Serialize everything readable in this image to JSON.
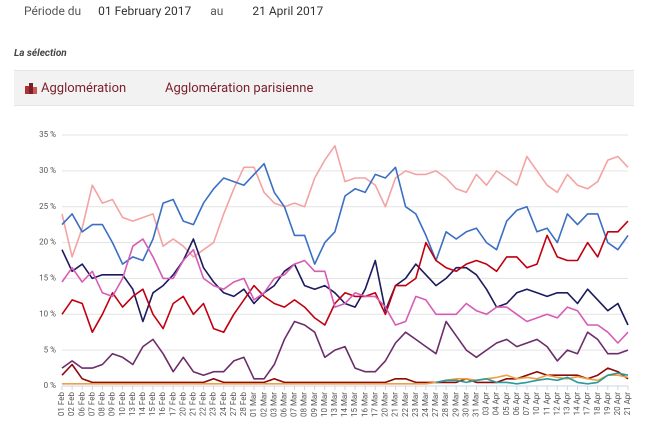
{
  "header": {
    "period_label": "Période du",
    "start_date": "01 February 2017",
    "between": "au",
    "end_date": "21 April 2017"
  },
  "selection_title": "La sélection",
  "tabs": [
    "Agglomération",
    "Agglomération parisienne"
  ],
  "chart_data": {
    "type": "line",
    "categories": [
      "01 Feb",
      "02 Feb",
      "06 Feb",
      "07 Feb",
      "08 Feb",
      "09 Feb",
      "10 Feb",
      "13 Feb",
      "14 Feb",
      "15 Feb",
      "16 Feb",
      "17 Feb",
      "20 Feb",
      "21 Feb",
      "22 Feb",
      "23 Feb",
      "24 Feb",
      "27 Feb",
      "28 Feb",
      "01 Mar",
      "02 Mar",
      "03 Mar",
      "06 Mar",
      "07 Mar",
      "08 Mar",
      "09 Mar",
      "10 Mar",
      "13 Mar",
      "14 Mar",
      "15 Mar",
      "16 Mar",
      "17 Mar",
      "20 Mar",
      "21 Mar",
      "22 Mar",
      "23 Mar",
      "24 Mar",
      "27 Mar",
      "28 Mar",
      "29 Mar",
      "30 Mar",
      "31 Mar",
      "03 Apr",
      "04 Apr",
      "05 Apr",
      "06 Apr",
      "07 Apr",
      "10 Apr",
      "11 Apr",
      "12 Apr",
      "13 Apr",
      "14 Apr",
      "17 Apr",
      "18 Apr",
      "19 Apr",
      "20 Apr",
      "21 Apr"
    ],
    "ylim": [
      0,
      35
    ],
    "yticks": [
      {
        "value": 0,
        "label": "0 %"
      },
      {
        "value": 5,
        "label": "5 %"
      },
      {
        "value": 10,
        "label": "10 %"
      },
      {
        "value": 15,
        "label": "15 %"
      },
      {
        "value": 20,
        "label": "20 %"
      },
      {
        "value": 25,
        "label": "25 %"
      },
      {
        "value": 30,
        "label": "30 %"
      },
      {
        "value": 35,
        "label": "35 %"
      }
    ],
    "grid": true,
    "series": [
      {
        "color": "#f4a3a3",
        "values": [
          24,
          18,
          22,
          28,
          25.5,
          26,
          23.5,
          23,
          23.5,
          24,
          19.5,
          20.5,
          19.5,
          18,
          19,
          20,
          24,
          27.5,
          30.5,
          30.5,
          27,
          25.5,
          25,
          25.5,
          25,
          29,
          31.5,
          33.5,
          28.5,
          29,
          29,
          28,
          25,
          29,
          30,
          29.5,
          29.5,
          30,
          29,
          27.5,
          27,
          29.5,
          28,
          30,
          29,
          28,
          32,
          30,
          28,
          27,
          29.5,
          28,
          27.5,
          28.5,
          31.5,
          32,
          30.5
        ]
      },
      {
        "color": "#3b6fc4",
        "values": [
          22.5,
          24,
          21.5,
          22.5,
          22.5,
          20,
          17,
          18,
          17.5,
          20.5,
          25.5,
          26,
          23,
          22.5,
          25.5,
          27.5,
          29,
          28.5,
          28,
          29.5,
          31,
          27,
          25,
          21,
          21,
          17,
          20,
          21.5,
          26.5,
          27.5,
          27,
          29.5,
          29,
          30.5,
          25,
          24,
          21,
          17.5,
          21.5,
          20.5,
          21.5,
          22,
          20,
          19,
          23,
          24.5,
          25,
          21.5,
          22,
          20,
          24,
          22.5,
          24,
          24,
          20,
          19,
          21
        ]
      },
      {
        "color": "#1b1b5e",
        "values": [
          19,
          16,
          17,
          15,
          15.5,
          15.5,
          15.5,
          13.5,
          9,
          13,
          14,
          15.5,
          17.5,
          20.5,
          16.5,
          14.5,
          13,
          12.5,
          13.5,
          11.5,
          13,
          14,
          16,
          17,
          14,
          13.5,
          14,
          13,
          11.5,
          11,
          13.5,
          17.5,
          10.5,
          14,
          15,
          17,
          15.5,
          14,
          15,
          16.5,
          16.5,
          15.5,
          13.5,
          11,
          11.5,
          13,
          13.5,
          13,
          12.5,
          13,
          13,
          11.5,
          13.5,
          12,
          10.5,
          11.5,
          8.5
        ]
      },
      {
        "color": "#c00010",
        "values": [
          10,
          12,
          11.5,
          7.5,
          10,
          13,
          11,
          12.5,
          13.5,
          10,
          8,
          11.5,
          12.5,
          10,
          11.5,
          8,
          7.5,
          10,
          12,
          14,
          12.5,
          11.5,
          11,
          12,
          11,
          9.5,
          8.5,
          11.5,
          13,
          12.5,
          12.5,
          13,
          10,
          14,
          14,
          15,
          20,
          17.5,
          16.5,
          16,
          17,
          17.5,
          17,
          16,
          18,
          18,
          16.5,
          17,
          21,
          18,
          17.5,
          17.5,
          20,
          18,
          21.5,
          21.5,
          23
        ]
      },
      {
        "color": "#d65cb5",
        "values": [
          14.5,
          16.5,
          14.5,
          16,
          13,
          12.5,
          15,
          19.5,
          20.5,
          18,
          15,
          15,
          17.5,
          19,
          15,
          14,
          13.5,
          14.5,
          15,
          12,
          13,
          15,
          15.5,
          17,
          17.5,
          16,
          16,
          11,
          11.5,
          13,
          12.5,
          12.5,
          11,
          8.5,
          9,
          12.5,
          12,
          10,
          10,
          10,
          11.5,
          10.5,
          10,
          11,
          11,
          10,
          9,
          9.5,
          10,
          9.5,
          11,
          10.5,
          8.5,
          8.5,
          7.5,
          6,
          7.5
        ]
      },
      {
        "color": "#6b2d6b",
        "values": [
          2.5,
          3.5,
          2.5,
          2.5,
          3,
          4.5,
          4,
          3,
          5.5,
          6.5,
          4.5,
          2,
          4,
          2,
          1.5,
          2,
          2,
          3.5,
          4,
          1,
          1,
          3,
          6.5,
          9,
          8.5,
          7.5,
          4,
          5,
          5.5,
          2.5,
          2,
          2,
          3.5,
          6,
          7.5,
          6.5,
          5.5,
          4.5,
          9,
          7,
          5,
          4,
          5,
          6,
          6.5,
          5.5,
          6,
          6.5,
          5.5,
          3.5,
          5,
          4.5,
          7.5,
          6.5,
          4.5,
          4.5,
          5
        ]
      },
      {
        "color": "#8b0a0a",
        "values": [
          1.5,
          3,
          1,
          0.5,
          0.5,
          0.5,
          0.5,
          0.5,
          0.5,
          0.5,
          0.5,
          0.5,
          0.5,
          0.5,
          0.5,
          1,
          0.5,
          0.5,
          0.5,
          0.5,
          0.5,
          1,
          0.5,
          0.5,
          0.5,
          0.5,
          0.5,
          0.5,
          0.5,
          0.5,
          0.5,
          0.5,
          0.5,
          1,
          1,
          0.5,
          0.5,
          0.5,
          0.5,
          0.5,
          1,
          0.5,
          0.5,
          0.5,
          1,
          1,
          1.5,
          2,
          1.5,
          1.5,
          1.5,
          1.5,
          1,
          1.5,
          2.5,
          2,
          1
        ]
      },
      {
        "color": "#f0a040",
        "values": [
          0.3,
          0.3,
          0.3,
          0.3,
          0.3,
          0.3,
          0.3,
          0.3,
          0.3,
          0.3,
          0.3,
          0.3,
          0.3,
          0.3,
          0.3,
          0.3,
          0.3,
          0.3,
          0.3,
          0.3,
          0.3,
          0.3,
          0.3,
          0.3,
          0.3,
          0.3,
          0.3,
          0.3,
          0.3,
          0.3,
          0.3,
          0.3,
          0.3,
          0.3,
          0.3,
          0.3,
          0.3,
          0.5,
          0.8,
          1,
          1,
          0.8,
          1,
          1.2,
          1.5,
          1,
          1.2,
          1,
          1.5,
          1.2,
          1,
          1.3,
          1,
          0.8,
          1.5,
          1.5,
          1.2
        ]
      },
      {
        "color": "#2a9a9a",
        "values": [
          null,
          null,
          null,
          null,
          null,
          null,
          null,
          null,
          null,
          null,
          null,
          null,
          null,
          null,
          null,
          null,
          null,
          null,
          null,
          null,
          null,
          null,
          null,
          null,
          null,
          null,
          null,
          null,
          null,
          null,
          null,
          null,
          null,
          null,
          null,
          null,
          null,
          0.5,
          0.8,
          0.8,
          0.5,
          0.8,
          1,
          0.5,
          0.5,
          0.3,
          0.5,
          0.8,
          1,
          0.8,
          1.2,
          0.5,
          0.3,
          0.5,
          1.5,
          1.8,
          1.5
        ]
      }
    ]
  }
}
